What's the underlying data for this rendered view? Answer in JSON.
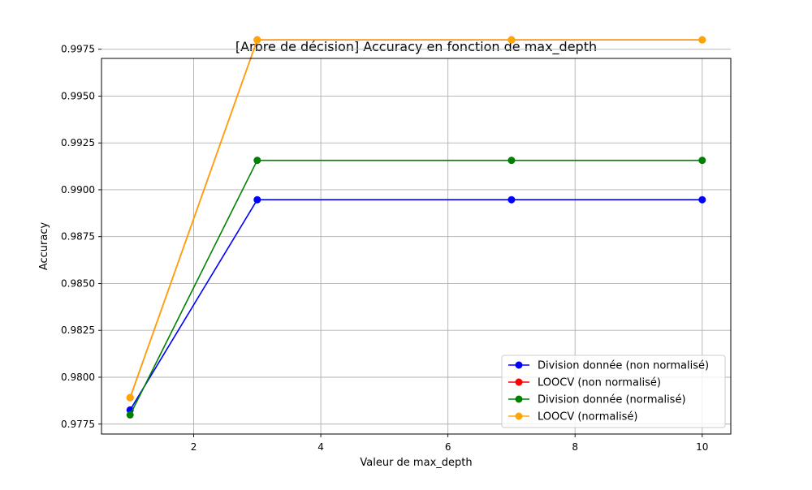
{
  "chart_data": {
    "type": "line",
    "title": "[Arbre de décision] Accuracy en fonction de max_depth",
    "xlabel": "Valeur de max_depth",
    "ylabel": "Accuracy",
    "xlim": [
      0.55,
      10.45
    ],
    "ylim": [
      0.97697,
      0.99701
    ],
    "x_ticks": [
      2,
      4,
      6,
      8,
      10
    ],
    "x_tick_labels": [
      "2",
      "4",
      "6",
      "8",
      "10"
    ],
    "y_ticks": [
      0.9775,
      0.98,
      0.9825,
      0.985,
      0.9875,
      0.99,
      0.9925,
      0.995,
      0.9975
    ],
    "y_tick_labels": [
      "0.9775",
      "0.9800",
      "0.9825",
      "0.9850",
      "0.9875",
      "0.9900",
      "0.9925",
      "0.9950",
      "0.9975"
    ],
    "grid": true,
    "legend_position": "lower-right",
    "x": [
      1,
      3,
      7,
      10
    ],
    "series": [
      {
        "name": "Division donnée (non normalisé)",
        "color": "#0000ff",
        "values": [
          0.97825,
          0.98947,
          0.98947,
          0.98947
        ]
      },
      {
        "name": "LOOCV (non normalisé)",
        "color": "#ff0000",
        "values": [
          0.97891,
          0.998,
          0.998,
          0.998
        ]
      },
      {
        "name": "Division donnée (normalisé)",
        "color": "#008000",
        "values": [
          0.97799,
          0.99157,
          0.99157,
          0.99157
        ]
      },
      {
        "name": "LOOCV (normalisé)",
        "color": "#ffa500",
        "values": [
          0.97891,
          0.998,
          0.998,
          0.998
        ]
      }
    ]
  }
}
